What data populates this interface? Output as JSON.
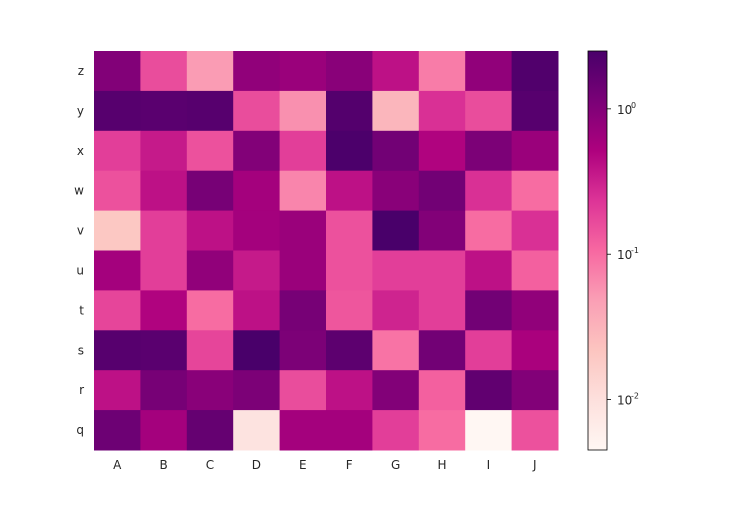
{
  "chart_data": {
    "type": "heatmap",
    "title": "",
    "xlabel": "",
    "ylabel": "",
    "x_categories": [
      "A",
      "B",
      "C",
      "D",
      "E",
      "F",
      "G",
      "H",
      "I",
      "J"
    ],
    "y_categories": [
      "z",
      "y",
      "x",
      "w",
      "v",
      "u",
      "t",
      "s",
      "r",
      "q"
    ],
    "color_scale": "log",
    "colormap": "RdPu",
    "color_range": [
      0.0045,
      2.5
    ],
    "colorbar": {
      "position": "right",
      "ticks": [
        {
          "base": "10",
          "exp": "0",
          "value": 1
        },
        {
          "base": "10",
          "exp": "-1",
          "value": 0.1
        },
        {
          "base": "10",
          "exp": "-2",
          "value": 0.01
        }
      ]
    },
    "values": [
      [
        1.0,
        0.16,
        0.05,
        0.8,
        0.7,
        0.9,
        0.4,
        0.08,
        0.8,
        2.2
      ],
      [
        2.0,
        1.9,
        2.0,
        0.16,
        0.06,
        2.1,
        0.03,
        0.25,
        0.16,
        2.0
      ],
      [
        0.2,
        0.35,
        0.15,
        1.0,
        0.2,
        2.4,
        1.3,
        0.5,
        1.1,
        0.7
      ],
      [
        0.15,
        0.4,
        1.2,
        0.6,
        0.07,
        0.4,
        0.9,
        1.3,
        0.25,
        0.1
      ],
      [
        0.02,
        0.2,
        0.4,
        0.6,
        0.7,
        0.15,
        2.5,
        1.0,
        0.1,
        0.25
      ],
      [
        0.6,
        0.2,
        0.8,
        0.35,
        0.7,
        0.15,
        0.2,
        0.2,
        0.4,
        0.12
      ],
      [
        0.18,
        0.5,
        0.1,
        0.4,
        1.2,
        0.14,
        0.3,
        0.2,
        1.3,
        0.8
      ],
      [
        2.0,
        1.9,
        0.18,
        2.6,
        1.1,
        1.8,
        0.09,
        1.3,
        0.2,
        0.55
      ],
      [
        0.4,
        1.2,
        0.9,
        1.1,
        0.16,
        0.4,
        1.0,
        0.12,
        1.7,
        1.0
      ],
      [
        1.4,
        0.6,
        1.6,
        0.009,
        0.6,
        0.6,
        0.2,
        0.1,
        0.0045,
        0.15
      ]
    ]
  }
}
